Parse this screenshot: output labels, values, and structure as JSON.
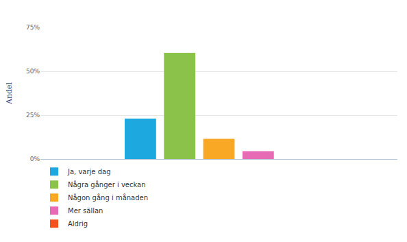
{
  "chart_data": {
    "type": "bar",
    "y_label": "Andel",
    "categories": [
      null
    ],
    "series": [
      {
        "name": "Ja, varje dag",
        "color": "#1ea8e0",
        "values": [
          23
        ]
      },
      {
        "name": "Några gånger i veckan",
        "color": "#8bc34a",
        "values": [
          60.5
        ]
      },
      {
        "name": "Någon gång i månaden",
        "color": "#f9a825",
        "values": [
          11.5
        ]
      },
      {
        "name": "Mer sällan",
        "color": "#e66ab4",
        "values": [
          4.5
        ]
      },
      {
        "name": "Aldrig",
        "color": "#f4511e",
        "values": [
          0
        ]
      }
    ],
    "ylim": [
      0,
      75
    ],
    "yticks": [
      {
        "value": 0,
        "label": "0%"
      },
      {
        "value": 25,
        "label": "25%"
      },
      {
        "value": 50,
        "label": "50%"
      },
      {
        "value": 75,
        "label": "75%"
      }
    ],
    "grid": true,
    "legend": "bottom left",
    "tick_labels": "y"
  }
}
